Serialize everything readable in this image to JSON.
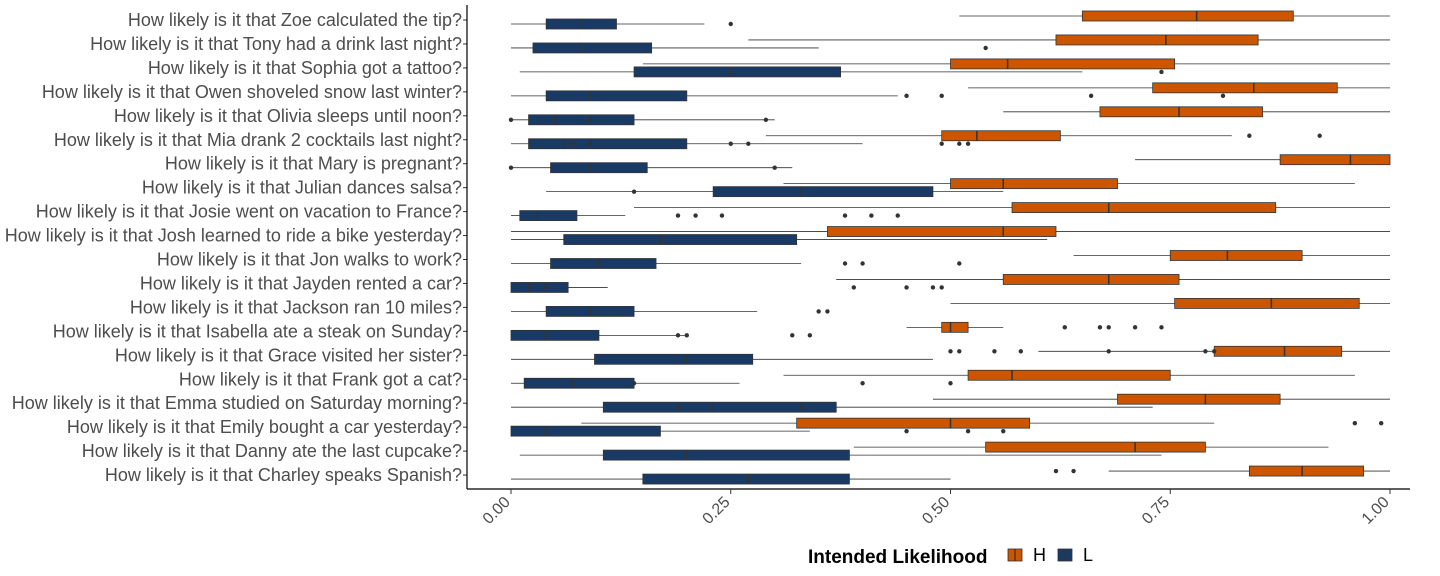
{
  "chart_data": {
    "type": "boxplot",
    "orientation": "horizontal",
    "categories": [
      "How likely is it that Zoe calculated the tip?",
      "How likely is it that Tony had a drink last night?",
      "How likely is it that Sophia got a tattoo?",
      "How likely is it that Owen shoveled snow last winter?",
      "How likely is it that Olivia sleeps until noon?",
      "How likely is it that Mia drank 2 cocktails last night?",
      "How likely is it that Mary is pregnant?",
      "How likely is it that Julian dances salsa?",
      "How likely is it that Josie went on vacation to France?",
      "How likely is it that Josh learned to ride a bike yesterday?",
      "How likely is it that Jon walks to work?",
      "How likely is it that Jayden rented a car?",
      "How likely is it that Jackson ran 10 miles?",
      "How likely is it that Isabella ate a steak on Sunday?",
      "How likely is it that Grace visited her sister?",
      "How likely is it that Frank got a cat?",
      "How likely is it that Emma studied on Saturday morning?",
      "How likely is it that Emily bought a car yesterday?",
      "How likely is it that Danny ate the last cupcake?",
      "How likely is it that Charley speaks Spanish?"
    ],
    "xlim": [
      0,
      1
    ],
    "x_ticks": [
      "0.00",
      "0.25",
      "0.50",
      "0.75",
      "1.00"
    ],
    "x_tick_values": [
      0,
      0.25,
      0.5,
      0.75,
      1
    ],
    "grid": false,
    "legend": {
      "title": "Intended Likelihood",
      "position": "bottom",
      "entries": [
        "H",
        "L"
      ]
    },
    "colors": {
      "H": "#cc5500",
      "L": "#1a3a66"
    },
    "series": [
      {
        "name": "H",
        "boxes": [
          {
            "lower": 0.51,
            "q1": 0.65,
            "median": 0.78,
            "q3": 0.89,
            "upper": 1.0,
            "outliers": []
          },
          {
            "lower": 0.27,
            "q1": 0.62,
            "median": 0.745,
            "q3": 0.85,
            "upper": 1.0,
            "outliers": []
          },
          {
            "lower": 0.15,
            "q1": 0.5,
            "median": 0.565,
            "q3": 0.755,
            "upper": 1.0,
            "outliers": []
          },
          {
            "lower": 0.52,
            "q1": 0.73,
            "median": 0.845,
            "q3": 0.94,
            "upper": 1.0,
            "outliers": []
          },
          {
            "lower": 0.56,
            "q1": 0.67,
            "median": 0.76,
            "q3": 0.855,
            "upper": 1.0,
            "outliers": []
          },
          {
            "lower": 0.29,
            "q1": 0.49,
            "median": 0.53,
            "q3": 0.625,
            "upper": 0.82,
            "outliers": [
              0.84,
              0.92
            ]
          },
          {
            "lower": 0.71,
            "q1": 0.875,
            "median": 0.955,
            "q3": 1.0,
            "upper": 1.0,
            "outliers": []
          },
          {
            "lower": 0.31,
            "q1": 0.5,
            "median": 0.56,
            "q3": 0.69,
            "upper": 0.96,
            "outliers": []
          },
          {
            "lower": 0.14,
            "q1": 0.57,
            "median": 0.68,
            "q3": 0.87,
            "upper": 1.0,
            "outliers": []
          },
          {
            "lower": 0.0,
            "q1": 0.36,
            "median": 0.56,
            "q3": 0.62,
            "upper": 1.0,
            "outliers": []
          },
          {
            "lower": 0.64,
            "q1": 0.75,
            "median": 0.815,
            "q3": 0.9,
            "upper": 1.0,
            "outliers": []
          },
          {
            "lower": 0.37,
            "q1": 0.56,
            "median": 0.68,
            "q3": 0.76,
            "upper": 1.0,
            "outliers": []
          },
          {
            "lower": 0.5,
            "q1": 0.755,
            "median": 0.865,
            "q3": 0.965,
            "upper": 1.0,
            "outliers": []
          },
          {
            "lower": 0.45,
            "q1": 0.49,
            "median": 0.5,
            "q3": 0.52,
            "upper": 0.56,
            "outliers": [
              0.63,
              0.67,
              0.68,
              0.71,
              0.74
            ]
          },
          {
            "lower": 0.6,
            "q1": 0.8,
            "median": 0.88,
            "q3": 0.945,
            "upper": 1.0,
            "outliers": [
              0.5,
              0.51,
              0.55,
              0.58,
              0.68,
              0.79,
              0.8
            ]
          },
          {
            "lower": 0.31,
            "q1": 0.52,
            "median": 0.57,
            "q3": 0.75,
            "upper": 0.96,
            "outliers": []
          },
          {
            "lower": 0.48,
            "q1": 0.69,
            "median": 0.79,
            "q3": 0.875,
            "upper": 1.0,
            "outliers": []
          },
          {
            "lower": 0.08,
            "q1": 0.325,
            "median": 0.5,
            "q3": 0.59,
            "upper": 0.8,
            "outliers": [
              0.96,
              0.99
            ]
          },
          {
            "lower": 0.39,
            "q1": 0.54,
            "median": 0.71,
            "q3": 0.79,
            "upper": 0.93,
            "outliers": []
          },
          {
            "lower": 0.68,
            "q1": 0.84,
            "median": 0.9,
            "q3": 0.97,
            "upper": 1.0,
            "outliers": [
              0.62,
              0.64
            ]
          }
        ]
      },
      {
        "name": "L",
        "boxes": [
          {
            "lower": 0.0,
            "q1": 0.04,
            "median": 0.08,
            "q3": 0.12,
            "upper": 0.22,
            "outliers": [
              0.25
            ]
          },
          {
            "lower": 0.0,
            "q1": 0.025,
            "median": 0.08,
            "q3": 0.16,
            "upper": 0.35,
            "outliers": [
              0.54
            ]
          },
          {
            "lower": 0.01,
            "q1": 0.14,
            "median": 0.25,
            "q3": 0.375,
            "upper": 0.65,
            "outliers": [
              0.74
            ]
          },
          {
            "lower": 0.0,
            "q1": 0.04,
            "median": 0.09,
            "q3": 0.2,
            "upper": 0.44,
            "outliers": [
              0.45,
              0.49,
              0.66,
              0.81
            ]
          },
          {
            "lower": 0.0,
            "q1": 0.02,
            "median": 0.05,
            "q3": 0.14,
            "upper": 0.3,
            "outliers": [
              0.0,
              0.09,
              0.29
            ]
          },
          {
            "lower": 0.0,
            "q1": 0.02,
            "median": 0.06,
            "q3": 0.2,
            "upper": 0.4,
            "outliers": [
              0.07,
              0.09,
              0.25,
              0.27,
              0.49,
              0.51,
              0.52
            ]
          },
          {
            "lower": 0.0,
            "q1": 0.045,
            "median": 0.09,
            "q3": 0.155,
            "upper": 0.32,
            "outliers": [
              0.0,
              0.3
            ]
          },
          {
            "lower": 0.04,
            "q1": 0.23,
            "median": 0.33,
            "q3": 0.48,
            "upper": 0.56,
            "outliers": [
              0.14
            ]
          },
          {
            "lower": 0.0,
            "q1": 0.01,
            "median": 0.03,
            "q3": 0.075,
            "upper": 0.13,
            "outliers": [
              0.19,
              0.21,
              0.24,
              0.38,
              0.41,
              0.44
            ]
          },
          {
            "lower": 0.0,
            "q1": 0.06,
            "median": 0.17,
            "q3": 0.325,
            "upper": 0.61,
            "outliers": []
          },
          {
            "lower": 0.0,
            "q1": 0.045,
            "median": 0.1,
            "q3": 0.165,
            "upper": 0.33,
            "outliers": [
              0.38,
              0.4,
              0.51
            ]
          },
          {
            "lower": 0.0,
            "q1": 0.0,
            "median": 0.02,
            "q3": 0.065,
            "upper": 0.11,
            "outliers": [
              0.04,
              0.39,
              0.45,
              0.48,
              0.49
            ]
          },
          {
            "lower": 0.0,
            "q1": 0.04,
            "median": 0.09,
            "q3": 0.14,
            "upper": 0.28,
            "outliers": [
              0.35,
              0.36
            ]
          },
          {
            "lower": 0.0,
            "q1": 0.0,
            "median": 0.04,
            "q3": 0.1,
            "upper": 0.2,
            "outliers": [
              0.19,
              0.2,
              0.32,
              0.34
            ]
          },
          {
            "lower": 0.0,
            "q1": 0.095,
            "median": 0.2,
            "q3": 0.275,
            "upper": 0.48,
            "outliers": []
          },
          {
            "lower": 0.0,
            "q1": 0.015,
            "median": 0.07,
            "q3": 0.14,
            "upper": 0.26,
            "outliers": [
              0.14,
              0.4,
              0.5
            ]
          },
          {
            "lower": 0.0,
            "q1": 0.105,
            "median": 0.23,
            "q3": 0.37,
            "upper": 0.73,
            "outliers": [
              0.19,
              0.33
            ]
          },
          {
            "lower": 0.0,
            "q1": 0.0,
            "median": 0.04,
            "q3": 0.17,
            "upper": 0.34,
            "outliers": [
              0.45,
              0.52,
              0.56
            ]
          },
          {
            "lower": 0.01,
            "q1": 0.105,
            "median": 0.2,
            "q3": 0.385,
            "upper": 0.74,
            "outliers": []
          },
          {
            "lower": 0.0,
            "q1": 0.15,
            "median": 0.27,
            "q3": 0.385,
            "upper": 0.5,
            "outliers": [
              0.27
            ]
          }
        ]
      }
    ]
  }
}
